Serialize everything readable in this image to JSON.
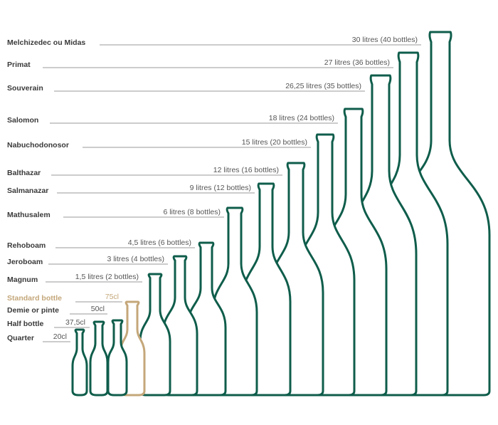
{
  "colors": {
    "outline": "#0f5d4b",
    "highlight": "#c4a77a",
    "label": "#3a3a3a",
    "volume": "#555555",
    "leader": "#9a9a9a"
  },
  "bottles": [
    {
      "name": "Melchizedec ou Midas",
      "volume": "30 litres (40 bottles)",
      "litres": 30,
      "highlight": false
    },
    {
      "name": "Primat",
      "volume": "27 litres (36 bottles)",
      "litres": 27,
      "highlight": false
    },
    {
      "name": "Souverain",
      "volume": "26,25 litres (35 bottles)",
      "litres": 26.25,
      "highlight": false
    },
    {
      "name": "Salomon",
      "volume": "18 litres (24 bottles)",
      "litres": 18,
      "highlight": false
    },
    {
      "name": "Nabuchodonosor",
      "volume": "15 litres (20 bottles)",
      "litres": 15,
      "highlight": false
    },
    {
      "name": "Balthazar",
      "volume": "12 litres (16 bottles)",
      "litres": 12,
      "highlight": false
    },
    {
      "name": "Salmanazar",
      "volume": "9 litres (12 bottles)",
      "litres": 9,
      "highlight": false
    },
    {
      "name": "Mathusalem",
      "volume": "6 litres (8 bottles)",
      "litres": 6,
      "highlight": false
    },
    {
      "name": "Rehoboam",
      "volume": "4,5 litres (6 bottles)",
      "litres": 4.5,
      "highlight": false
    },
    {
      "name": "Jeroboam",
      "volume": "3 litres (4 bottles)",
      "litres": 3,
      "highlight": false
    },
    {
      "name": "Magnum",
      "volume": "1,5 litres (2 bottles)",
      "litres": 1.5,
      "highlight": false
    },
    {
      "name": "Standard bottle",
      "volume": "75cl",
      "litres": 0.75,
      "highlight": true
    },
    {
      "name": "Demie or pinte",
      "volume": "50cl",
      "litres": 0.5,
      "highlight": false
    },
    {
      "name": "Half bottle",
      "volume": "37,5cl",
      "litres": 0.375,
      "highlight": false
    },
    {
      "name": "Quarter",
      "volume": "20cl",
      "litres": 0.2,
      "highlight": false
    }
  ]
}
